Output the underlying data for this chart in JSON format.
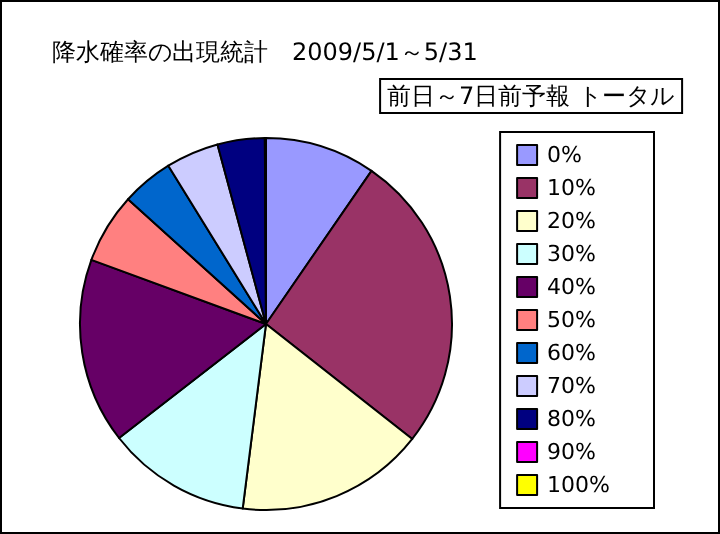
{
  "chart_data": {
    "type": "pie",
    "title": "降水確率の出現統計　2009/5/1～5/31",
    "subtitle": "前日～7日前予報 トータル",
    "categories": [
      "0%",
      "10%",
      "20%",
      "30%",
      "40%",
      "50%",
      "60%",
      "70%",
      "80%",
      "90%",
      "100%"
    ],
    "values": [
      9.6,
      26.0,
      16.4,
      12.5,
      16.1,
      6.1,
      4.5,
      4.6,
      4.1,
      0.1,
      0
    ],
    "colors": [
      "#9999ff",
      "#993366",
      "#ffffcc",
      "#ccffff",
      "#660066",
      "#ff8080",
      "#0066cc",
      "#ccccff",
      "#000080",
      "#ff00ff",
      "#ffff00"
    ],
    "legend": "right"
  }
}
